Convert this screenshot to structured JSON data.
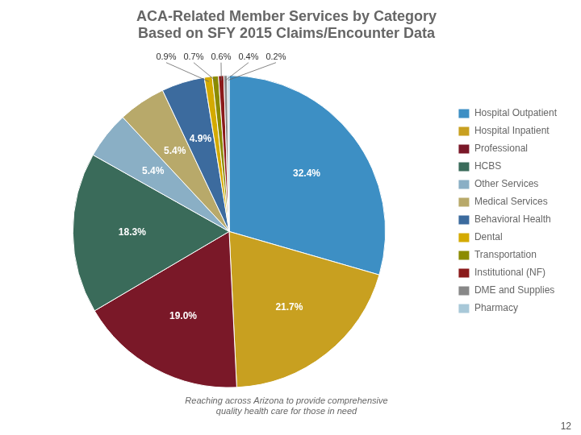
{
  "chart_data": {
    "type": "pie",
    "title": "ACA-Related Member Services by Category\nBased on SFY 2015 Claims/Encounter Data",
    "subtitle": "Reaching across Arizona to provide comprehensive\nquality health care for those in need",
    "annotations": [
      "12"
    ],
    "categories": [
      "Hospital Outpatient",
      "Hospital Inpatient",
      "Professional",
      "HCBS",
      "Other Services",
      "Medical Services",
      "Behavioral Health",
      "Dental",
      "Transportation",
      "Institutional (NF)",
      "DME and Supplies",
      "Pharmacy"
    ],
    "values": [
      32.4,
      21.7,
      19.0,
      18.3,
      5.4,
      5.4,
      4.9,
      0.9,
      0.7,
      0.6,
      0.4,
      0.2
    ],
    "value_labels": [
      "32.4%",
      "21.7%",
      "19.0%",
      "18.3%",
      "5.4%",
      "5.4%",
      "4.9%",
      "0.9%",
      "0.7%",
      "0.6%",
      "0.4%",
      "0.2%"
    ],
    "colors": [
      "#3D8FC4",
      "#C8A020",
      "#7A1828",
      "#3A6B5A",
      "#8AAFC5",
      "#B8A96A",
      "#3C6B9E",
      "#D4AA00",
      "#8B8B00",
      "#8B1A1A",
      "#888888",
      "#A8C8D8"
    ],
    "data_labels": true,
    "legend": "right"
  }
}
